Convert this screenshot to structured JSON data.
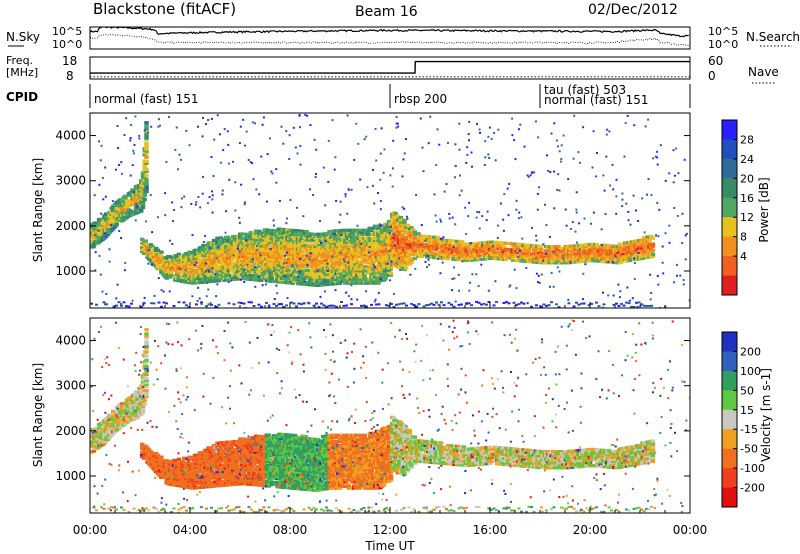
{
  "header": {
    "station": "Blackstone (fitACF)",
    "beam": "Beam 16",
    "date": "02/Dec/2012"
  },
  "noise_panel": {
    "left_label": "N.Sky",
    "left_ticks": [
      "10^5",
      "10^0"
    ],
    "right_ticks": [
      "10^5",
      "10^0"
    ],
    "right_label": "N.Search"
  },
  "freq_panel": {
    "left_label_top": "Freq.",
    "left_label_bottom": "[MHz]",
    "left_ticks": [
      "18",
      "8"
    ],
    "right_ticks": [
      "60",
      "0"
    ],
    "right_label": "Nave"
  },
  "cpid": {
    "label": "CPID",
    "segments": [
      {
        "text": "normal (fast) 151",
        "start_hour": 0.0
      },
      {
        "text": "rbsp 200",
        "start_hour": 12.0
      },
      {
        "text": "tau (fast) 503",
        "start_hour": 18.0
      },
      {
        "text": "normal (fast) 151",
        "start_hour": 18.0
      }
    ]
  },
  "colors": {
    "power_scale": [
      "#2a20ff",
      "#2050c0",
      "#2f6a9a",
      "#3a8a6a",
      "#50a860",
      "#e8c020",
      "#f09020",
      "#f06020",
      "#e02020"
    ],
    "velocity_scale": [
      "#2030c0",
      "#3060c0",
      "#30a060",
      "#60c840",
      "#c8c8c0",
      "#f0a020",
      "#f07020",
      "#f04020",
      "#e01010"
    ]
  },
  "chart_data": [
    {
      "type": "line",
      "title": "",
      "xlabel": "",
      "ylabel": "N.Sky",
      "y_scale": "log",
      "ylim": [
        1,
        100000
      ],
      "xlim": [
        0,
        24
      ],
      "series": [
        {
          "x": [
            0,
            0.3,
            0.5,
            2.5,
            2.7,
            6,
            9,
            12,
            15,
            18,
            21,
            22.6,
            22.8,
            23.5,
            24
          ],
          "values": [
            10000,
            10000,
            100000,
            30000,
            3000,
            8000,
            12000,
            18000,
            15000,
            12000,
            10000,
            20000,
            3000,
            1000,
            1000
          ]
        },
        {
          "x": [
            0,
            0.3,
            0.5,
            2.5,
            2.7,
            6,
            9,
            12,
            15,
            18,
            21,
            22.6,
            22.8,
            23.5,
            24
          ],
          "values": [
            300,
            300,
            2000,
            200,
            30,
            30,
            30,
            30,
            30,
            30,
            30,
            200,
            30,
            10,
            10
          ]
        }
      ]
    },
    {
      "type": "line",
      "title": "",
      "xlabel": "",
      "ylabel": "Freq. [MHz]",
      "ylim": [
        8,
        18
      ],
      "xlim": [
        0,
        24
      ],
      "series": [
        {
          "x": [
            0,
            12,
            13,
            13.01,
            24
          ],
          "values": [
            10.7,
            10.7,
            10.7,
            15.9,
            15.9
          ]
        },
        {
          "x": [
            0,
            24
          ],
          "values": [
            9,
            9
          ]
        }
      ]
    },
    {
      "type": "heatmap",
      "title": "",
      "xlabel": "Time UT",
      "ylabel": "Slant Range [km]",
      "colorbar_label": "Power [dB]",
      "colorbar_ticks": [
        28,
        24,
        20,
        16,
        12,
        8,
        4
      ],
      "ylim": [
        180,
        4500
      ],
      "xlim": [
        0,
        24
      ],
      "x_ticks": [
        "00:00",
        "04:00",
        "08:00",
        "12:00",
        "16:00",
        "20:00",
        "00:00"
      ],
      "y_ticks": [
        1000,
        2000,
        3000,
        4000
      ],
      "bands": [
        {
          "name": "evening_rising",
          "x": [
            0,
            0.5,
            1.0,
            1.5,
            2.0,
            2.2
          ],
          "lower": [
            1500,
            1700,
            2000,
            2200,
            2300,
            2800
          ],
          "upper": [
            2000,
            2200,
            2500,
            2700,
            3000,
            4500
          ],
          "level": 14
        },
        {
          "name": "main_trough",
          "x": [
            2.0,
            3.0,
            4.0,
            5.0,
            6.0,
            7.0,
            8.0,
            9.0,
            10.0,
            11.0,
            11.5,
            12.0
          ],
          "lower": [
            1400,
            800,
            700,
            750,
            800,
            750,
            700,
            650,
            700,
            700,
            700,
            900
          ],
          "upper": [
            1700,
            1300,
            1400,
            1700,
            1800,
            1900,
            1900,
            1800,
            1900,
            1900,
            2000,
            2100
          ],
          "level": 16
        },
        {
          "name": "post_midnight",
          "x": [
            12.0,
            12.5,
            13.0,
            14.0,
            15.0,
            16.0,
            17.0,
            18.0,
            19.0,
            20.0,
            21.0,
            22.0,
            22.5
          ],
          "lower": [
            1100,
            1000,
            1300,
            1250,
            1200,
            1250,
            1200,
            1150,
            1150,
            1200,
            1150,
            1250,
            1300
          ],
          "upper": [
            2300,
            2100,
            1800,
            1700,
            1600,
            1650,
            1600,
            1550,
            1550,
            1600,
            1550,
            1700,
            1800
          ],
          "level": 20
        }
      ]
    },
    {
      "type": "heatmap",
      "title": "",
      "xlabel": "Time UT",
      "ylabel": "Slant Range [km]",
      "colorbar_label": "Velocity [m s-1]",
      "colorbar_ticks": [
        200,
        100,
        50,
        15,
        -15,
        -50,
        -100,
        -200
      ],
      "ylim": [
        180,
        4500
      ],
      "xlim": [
        0,
        24
      ],
      "x_ticks": [
        "00:00",
        "04:00",
        "08:00",
        "12:00",
        "16:00",
        "20:00",
        "00:00"
      ],
      "y_ticks": [
        1000,
        2000,
        3000,
        4000
      ],
      "bands": [
        {
          "name": "evening_rising",
          "x": [
            0,
            0.5,
            1.0,
            1.5,
            2.0,
            2.2
          ],
          "lower": [
            1500,
            1700,
            2000,
            2200,
            2300,
            2800
          ],
          "upper": [
            2000,
            2200,
            2500,
            2700,
            3000,
            4500
          ],
          "velocity": 0
        },
        {
          "name": "main_trough_west",
          "x": [
            2.0,
            3.0,
            4.0,
            5.0,
            6.0,
            7.0
          ],
          "lower": [
            1400,
            800,
            700,
            750,
            800,
            750
          ],
          "upper": [
            1700,
            1300,
            1400,
            1700,
            1800,
            1900
          ],
          "velocity": -60
        },
        {
          "name": "main_trough_mid",
          "x": [
            7.0,
            8.0,
            9.0,
            9.5
          ],
          "lower": [
            750,
            700,
            650,
            700
          ],
          "upper": [
            1900,
            1900,
            1800,
            1900
          ],
          "velocity": 40
        },
        {
          "name": "main_trough_east",
          "x": [
            9.5,
            10.0,
            11.0,
            11.5,
            12.0
          ],
          "lower": [
            700,
            700,
            700,
            700,
            900
          ],
          "upper": [
            1900,
            1900,
            1900,
            2000,
            2100
          ],
          "velocity": -40
        },
        {
          "name": "post_midnight",
          "x": [
            12.0,
            12.5,
            13.0,
            14.0,
            15.0,
            16.0,
            17.0,
            18.0,
            19.0,
            20.0,
            21.0,
            22.0,
            22.5
          ],
          "lower": [
            1100,
            1000,
            1300,
            1250,
            1200,
            1250,
            1200,
            1150,
            1150,
            1200,
            1150,
            1250,
            1300
          ],
          "upper": [
            2300,
            2100,
            1800,
            1700,
            1600,
            1650,
            1600,
            1550,
            1550,
            1600,
            1550,
            1700,
            1800
          ],
          "velocity": 0
        }
      ]
    }
  ]
}
